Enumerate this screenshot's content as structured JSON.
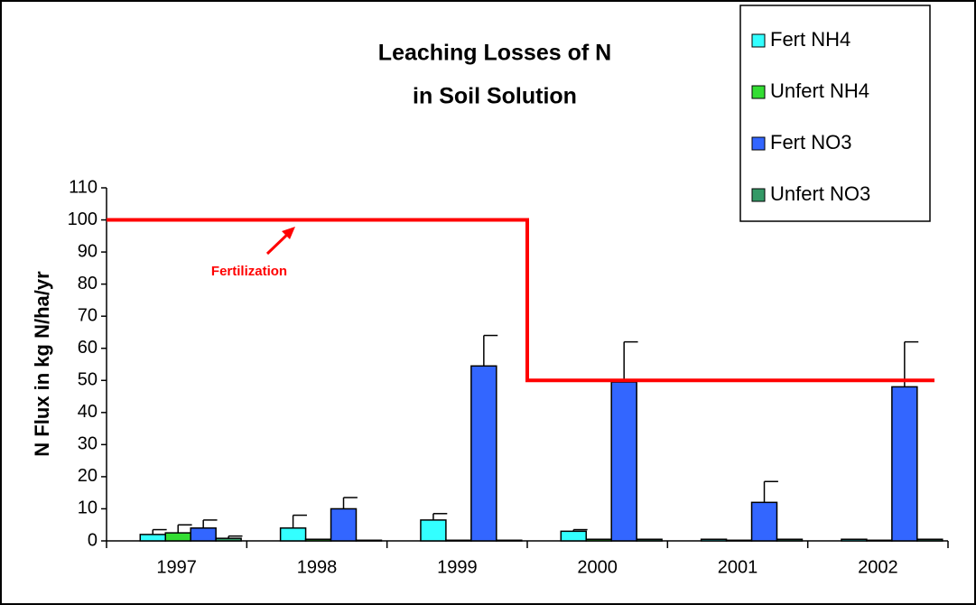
{
  "chart_data": {
    "type": "bar",
    "title": [
      "Leaching Losses of N",
      "in Soil Solution"
    ],
    "y_label": "N Flux in kg N/ha/yr",
    "categories": [
      "1997",
      "1998",
      "1999",
      "2000",
      "2001",
      "2002"
    ],
    "series": [
      {
        "name": "Fert NH4",
        "color": "#33ffff",
        "values": [
          2,
          4,
          6.5,
          3,
          0.5,
          0.5
        ],
        "errors": [
          1.5,
          4,
          2,
          0.5,
          null,
          null
        ]
      },
      {
        "name": "Unfert NH4",
        "color": "#33dd33",
        "values": [
          2.5,
          0.5,
          0.2,
          0.5,
          0.2,
          0.2
        ],
        "errors": [
          2.5,
          null,
          null,
          null,
          null,
          null
        ]
      },
      {
        "name": "Fert NO3",
        "color": "#3366ff",
        "values": [
          4,
          10,
          54.5,
          49.5,
          12,
          48
        ],
        "errors": [
          2.5,
          3.5,
          9.5,
          12.5,
          6.5,
          14
        ]
      },
      {
        "name": "Unfert NO3",
        "color": "#339966",
        "values": [
          0.8,
          0.2,
          0.2,
          0.5,
          0.5,
          0.5
        ],
        "errors": [
          0.7,
          null,
          null,
          null,
          null,
          null
        ]
      }
    ],
    "fertilization": {
      "label": "Fertilization",
      "color": "#ff0000",
      "values": [
        100,
        100,
        100,
        50,
        50,
        50
      ]
    },
    "ylim": [
      0,
      110
    ],
    "yticks": [
      0,
      10,
      20,
      30,
      40,
      50,
      60,
      70,
      80,
      90,
      100,
      110
    ],
    "legend": "top-right"
  }
}
